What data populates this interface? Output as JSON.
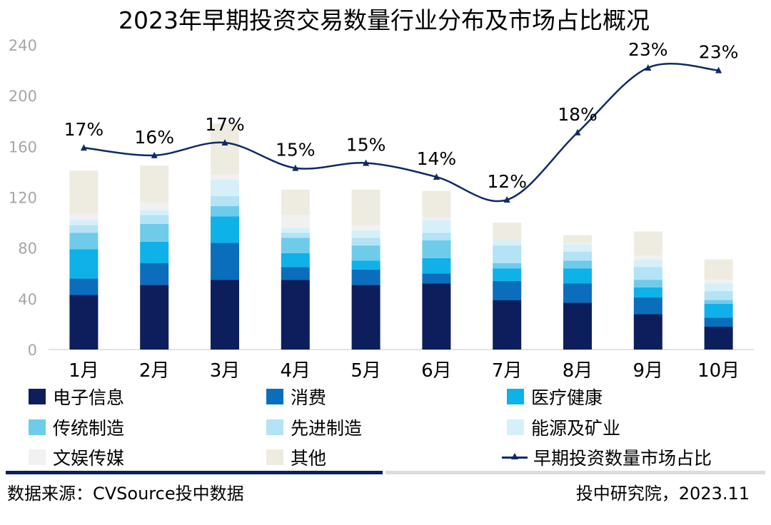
{
  "chart_data": {
    "type": "bar",
    "stacked": true,
    "title": "2023年早期投资交易数量行业分布及市场占比概况",
    "categories": [
      "1月",
      "2月",
      "3月",
      "4月",
      "5月",
      "6月",
      "7月",
      "8月",
      "9月",
      "10月"
    ],
    "ylim": [
      0,
      240
    ],
    "yticks": [
      0,
      40,
      80,
      120,
      160,
      200,
      240
    ],
    "series": [
      {
        "name": "电子信息",
        "color": "#0c1f5c",
        "values": [
          43,
          51,
          55,
          55,
          51,
          52,
          39,
          37,
          28,
          18
        ]
      },
      {
        "name": "消费",
        "color": "#0a6ebd",
        "values": [
          13,
          17,
          29,
          10,
          12,
          8,
          15,
          15,
          13,
          7
        ]
      },
      {
        "name": "医疗健康",
        "color": "#0fb1e9",
        "values": [
          23,
          17,
          21,
          11,
          7,
          12,
          10,
          12,
          8,
          11
        ]
      },
      {
        "name": "传统制造",
        "color": "#6fcbea",
        "values": [
          13,
          14,
          8,
          12,
          12,
          14,
          4,
          6,
          6,
          3
        ]
      },
      {
        "name": "先进制造",
        "color": "#b3e3f4",
        "values": [
          6,
          7,
          8,
          4,
          6,
          6,
          14,
          7,
          10,
          7
        ]
      },
      {
        "name": "能源及矿业",
        "color": "#d6f0fa",
        "values": [
          4,
          4,
          13,
          4,
          6,
          10,
          4,
          6,
          6,
          6
        ]
      },
      {
        "name": "文娱传媒",
        "color": "#f1f1f1",
        "values": [
          5,
          6,
          4,
          10,
          4,
          2,
          0,
          1,
          3,
          3
        ]
      },
      {
        "name": "其他",
        "color": "#eeebe1",
        "values": [
          34,
          29,
          40,
          20,
          28,
          21,
          14,
          6,
          19,
          16
        ]
      }
    ],
    "line": {
      "name": "早期投资数量市场占比",
      "color": "#0f2a64",
      "values": [
        17,
        16,
        17,
        15,
        15,
        14,
        12,
        18,
        23,
        23
      ],
      "plot_values": [
        159,
        153,
        163,
        143,
        147,
        136,
        118,
        171,
        222,
        220
      ],
      "labels": [
        "17%",
        "16%",
        "17%",
        "15%",
        "15%",
        "14%",
        "12%",
        "18%",
        "23%",
        "23%"
      ]
    },
    "legend": {
      "position": "bottom"
    }
  },
  "legend": {
    "items": [
      {
        "label": "电子信息",
        "color": "#0c1f5c"
      },
      {
        "label": "消费",
        "color": "#0a6ebd"
      },
      {
        "label": "医疗健康",
        "color": "#0fb1e9"
      },
      {
        "label": "传统制造",
        "color": "#6fcbea"
      },
      {
        "label": "先进制造",
        "color": "#b3e3f4"
      },
      {
        "label": "能源及矿业",
        "color": "#d6f0fa"
      },
      {
        "label": "文娱传媒",
        "color": "#f1f1f1"
      },
      {
        "label": "其他",
        "color": "#eeebe1"
      }
    ],
    "line_label": "早期投资数量市场占比"
  },
  "footer": {
    "source": "数据来源：CVSource投中数据",
    "publisher": "投中研究院，2023.11"
  }
}
